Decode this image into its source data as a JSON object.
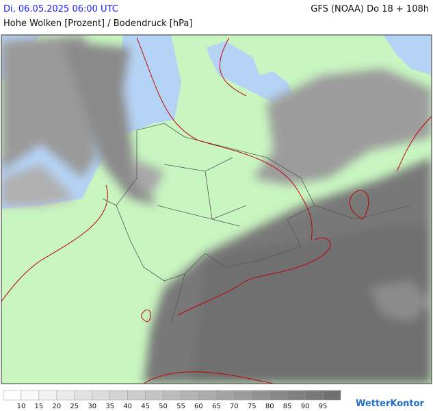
{
  "header": {
    "date": "Di, 06.05.2025 06:00 UTC",
    "model": "GFS (NOAA) Do 18 + 108h",
    "title": "Hohe Wolken [Prozent] / Bodendruck [hPa]"
  },
  "legend": {
    "ticks": [
      10,
      15,
      20,
      25,
      30,
      35,
      40,
      45,
      50,
      55,
      60,
      65,
      70,
      75,
      80,
      85,
      90,
      95
    ],
    "colors": [
      "#ffffff",
      "#fafafa",
      "#f2f2f2",
      "#ebebeb",
      "#e3e3e3",
      "#dcdcdc",
      "#d4d4d4",
      "#cccccc",
      "#c4c4c4",
      "#bcbcbc",
      "#b4b4b4",
      "#acacac",
      "#a3a3a3",
      "#9b9b9b",
      "#929292",
      "#898989",
      "#818181",
      "#787878",
      "#707070"
    ]
  },
  "logo": "WetterKontor"
}
